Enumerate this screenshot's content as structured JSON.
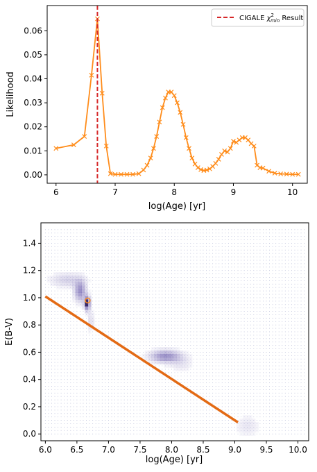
{
  "chart_data": [
    {
      "type": "line",
      "xlabel": "log(Age) [yr]",
      "ylabel": "Likelihood",
      "xlim": [
        5.85,
        10.25
      ],
      "ylim": [
        -0.0035,
        0.0705
      ],
      "x_ticks": [
        6,
        7,
        8,
        9,
        10
      ],
      "x_tick_labels": [
        "6",
        "7",
        "8",
        "9",
        "10"
      ],
      "y_ticks": [
        0.0,
        0.01,
        0.02,
        0.03,
        0.04,
        0.05,
        0.06
      ],
      "y_tick_labels": [
        "0.00",
        "0.01",
        "0.02",
        "0.03",
        "0.04",
        "0.05",
        "0.06"
      ],
      "grid": false,
      "legend_position": "top-right",
      "legend": [
        {
          "label": "CIGALE χ²min Result",
          "label_main": "CIGALE ",
          "label_chi": "χ",
          "label_sup": "2",
          "label_sub": "min",
          "label_tail": " Result",
          "style": "dashed",
          "color": "#d62728"
        }
      ],
      "reference_line": {
        "x": 6.7,
        "color": "#d62728",
        "style": "dashed"
      },
      "series": [
        {
          "color": "#ff8c1a",
          "marker": "x",
          "x": [
            6.0,
            6.3,
            6.48,
            6.6,
            6.7,
            6.78,
            6.85,
            6.92,
            7.0,
            7.1,
            7.2,
            7.3,
            7.4,
            7.48,
            7.54,
            7.6,
            7.65,
            7.7,
            7.75,
            7.8,
            7.85,
            7.9,
            7.95,
            8.0,
            8.05,
            8.1,
            8.15,
            8.2,
            8.25,
            8.3,
            8.35,
            8.4,
            8.45,
            8.5,
            8.55,
            8.6,
            8.65,
            8.7,
            8.75,
            8.8,
            8.85,
            8.9,
            8.95,
            9.0,
            9.05,
            9.1,
            9.15,
            9.2,
            9.25,
            9.3,
            9.35,
            9.4,
            9.45,
            9.5,
            9.6,
            9.7,
            9.8,
            9.9,
            10.0,
            10.1
          ],
          "y": [
            0.011,
            0.0125,
            0.016,
            0.0415,
            0.065,
            0.034,
            0.012,
            0.0005,
            0.0002,
            0.0002,
            0.0002,
            0.0002,
            0.0005,
            0.002,
            0.004,
            0.007,
            0.011,
            0.016,
            0.022,
            0.028,
            0.032,
            0.0345,
            0.0345,
            0.033,
            0.03,
            0.026,
            0.021,
            0.0155,
            0.011,
            0.007,
            0.0045,
            0.003,
            0.0022,
            0.0018,
            0.002,
            0.0025,
            0.0035,
            0.0048,
            0.0065,
            0.0085,
            0.01,
            0.0095,
            0.011,
            0.014,
            0.0135,
            0.0145,
            0.0155,
            0.0155,
            0.0145,
            0.013,
            0.012,
            0.004,
            0.003,
            0.0028,
            0.0015,
            0.0007,
            0.0004,
            0.0003,
            0.0002,
            0.0002
          ]
        }
      ]
    },
    {
      "type": "heatmap",
      "xlabel": "log(Age) [yr]",
      "ylabel": "E(B-V)",
      "xlim": [
        5.93,
        10.17
      ],
      "ylim": [
        -0.05,
        1.55
      ],
      "x_ticks": [
        6.0,
        6.5,
        7.0,
        7.5,
        8.0,
        8.5,
        9.0,
        9.5,
        10.0
      ],
      "x_tick_labels": [
        "6.0",
        "6.5",
        "7.0",
        "7.5",
        "8.0",
        "8.5",
        "9.0",
        "9.5",
        "10.0"
      ],
      "y_ticks": [
        0.0,
        0.2,
        0.4,
        0.6,
        0.8,
        1.0,
        1.2,
        1.4
      ],
      "y_tick_labels": [
        "0.0",
        "0.2",
        "0.4",
        "0.6",
        "0.8",
        "1.0",
        "1.2",
        "1.4"
      ],
      "grid_points": {
        "x_start": 6.0,
        "x_end": 10.1,
        "x_step": 0.05,
        "y_start": 0.0,
        "y_end": 1.5,
        "y_step": 0.025,
        "color": "#b8bcd8"
      },
      "density_blobs": [
        {
          "x": 6.35,
          "y": 1.13,
          "sx": 0.18,
          "sy": 0.035,
          "intensity": 0.22
        },
        {
          "x": 6.55,
          "y": 1.05,
          "sx": 0.06,
          "sy": 0.05,
          "intensity": 0.55
        },
        {
          "x": 6.66,
          "y": 0.96,
          "sx": 0.03,
          "sy": 0.035,
          "intensity": 0.9
        },
        {
          "x": 6.72,
          "y": 0.83,
          "sx": 0.03,
          "sy": 0.05,
          "intensity": 0.18
        },
        {
          "x": 7.9,
          "y": 0.57,
          "sx": 0.16,
          "sy": 0.03,
          "intensity": 0.55
        },
        {
          "x": 8.15,
          "y": 0.52,
          "sx": 0.12,
          "sy": 0.04,
          "intensity": 0.12
        },
        {
          "x": 9.2,
          "y": 0.06,
          "sx": 0.12,
          "sy": 0.05,
          "intensity": 0.12
        }
      ],
      "best_fit_marker": {
        "x": 6.67,
        "y": 0.98,
        "color": "#ff8c1a"
      },
      "fit_line": {
        "x": [
          6.0,
          9.05
        ],
        "y": [
          1.01,
          0.085
        ],
        "color": "#e36a14"
      }
    }
  ]
}
